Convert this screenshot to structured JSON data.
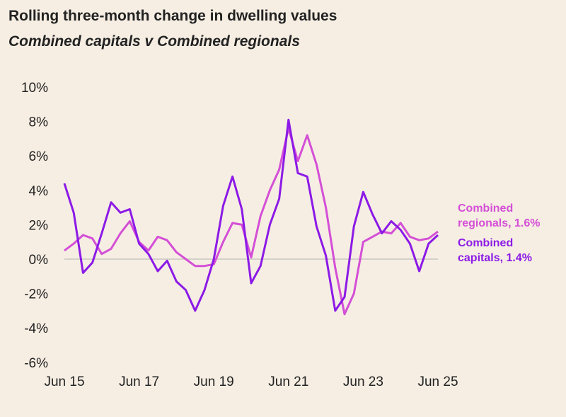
{
  "chart_data": {
    "type": "line",
    "title": "Rolling three-month change in dwelling values",
    "subtitle": "Combined capitals v Combined regionals",
    "xlabel": "",
    "ylabel": "",
    "ylim": [
      -6,
      10
    ],
    "yticks": [
      "10%",
      "8%",
      "6%",
      "4%",
      "2%",
      "0%",
      "-2%",
      "-4%",
      "-6%"
    ],
    "ytick_values": [
      10,
      8,
      6,
      4,
      2,
      0,
      -2,
      -4,
      -6
    ],
    "xticks": [
      "Jun 15",
      "Jun 17",
      "Jun 19",
      "Jun 21",
      "Jun 23",
      "Jun 25"
    ],
    "grid": "zero line only",
    "x": [
      "Jun 15",
      "Sep 15",
      "Dec 15",
      "Mar 16",
      "Jun 16",
      "Sep 16",
      "Dec 16",
      "Mar 17",
      "Jun 17",
      "Sep 17",
      "Dec 17",
      "Mar 18",
      "Jun 18",
      "Sep 18",
      "Dec 18",
      "Mar 19",
      "Jun 19",
      "Sep 19",
      "Dec 19",
      "Mar 20",
      "Jun 20",
      "Sep 20",
      "Dec 20",
      "Mar 21",
      "Jun 21",
      "Sep 21",
      "Dec 21",
      "Mar 22",
      "Jun 22",
      "Sep 22",
      "Dec 22",
      "Mar 23",
      "Jun 23",
      "Sep 23",
      "Dec 23",
      "Mar 24",
      "Jun 24",
      "Sep 24",
      "Dec 24",
      "Mar 25",
      "Jun 25"
    ],
    "series": [
      {
        "name": "Combined regionals",
        "end_label": "Combined regionals, 1.6%",
        "color": "#d44fd6",
        "values": [
          0.5,
          0.9,
          1.4,
          1.2,
          0.3,
          0.6,
          1.5,
          2.2,
          1.0,
          0.5,
          1.3,
          1.1,
          0.4,
          0.0,
          -0.4,
          -0.4,
          -0.3,
          1.0,
          2.1,
          2.0,
          0.1,
          2.5,
          4.0,
          5.2,
          7.6,
          5.7,
          7.2,
          5.5,
          3.0,
          -0.5,
          -3.2,
          -2.0,
          1.0,
          1.3,
          1.6,
          1.5,
          2.1,
          1.3,
          1.1,
          1.2,
          1.6
        ]
      },
      {
        "name": "Combined capitals",
        "end_label": "Combined capitals, 1.4%",
        "color": "#8c1ae6",
        "values": [
          4.4,
          2.7,
          -0.8,
          -0.2,
          1.5,
          3.3,
          2.7,
          2.9,
          0.9,
          0.3,
          -0.7,
          -0.1,
          -1.3,
          -1.8,
          -3.0,
          -1.8,
          0.0,
          3.1,
          4.8,
          2.9,
          -1.4,
          -0.4,
          2.0,
          3.5,
          8.1,
          5.0,
          4.8,
          1.9,
          0.2,
          -3.0,
          -2.2,
          1.9,
          3.9,
          2.6,
          1.5,
          2.2,
          1.7,
          0.9,
          -0.7,
          0.9,
          1.4
        ]
      }
    ],
    "labels": {
      "regionals_line1": "Combined",
      "regionals_line2": "regionals, 1.6%",
      "capitals_line1": "Combined",
      "capitals_line2": "capitals, 1.4%"
    }
  }
}
